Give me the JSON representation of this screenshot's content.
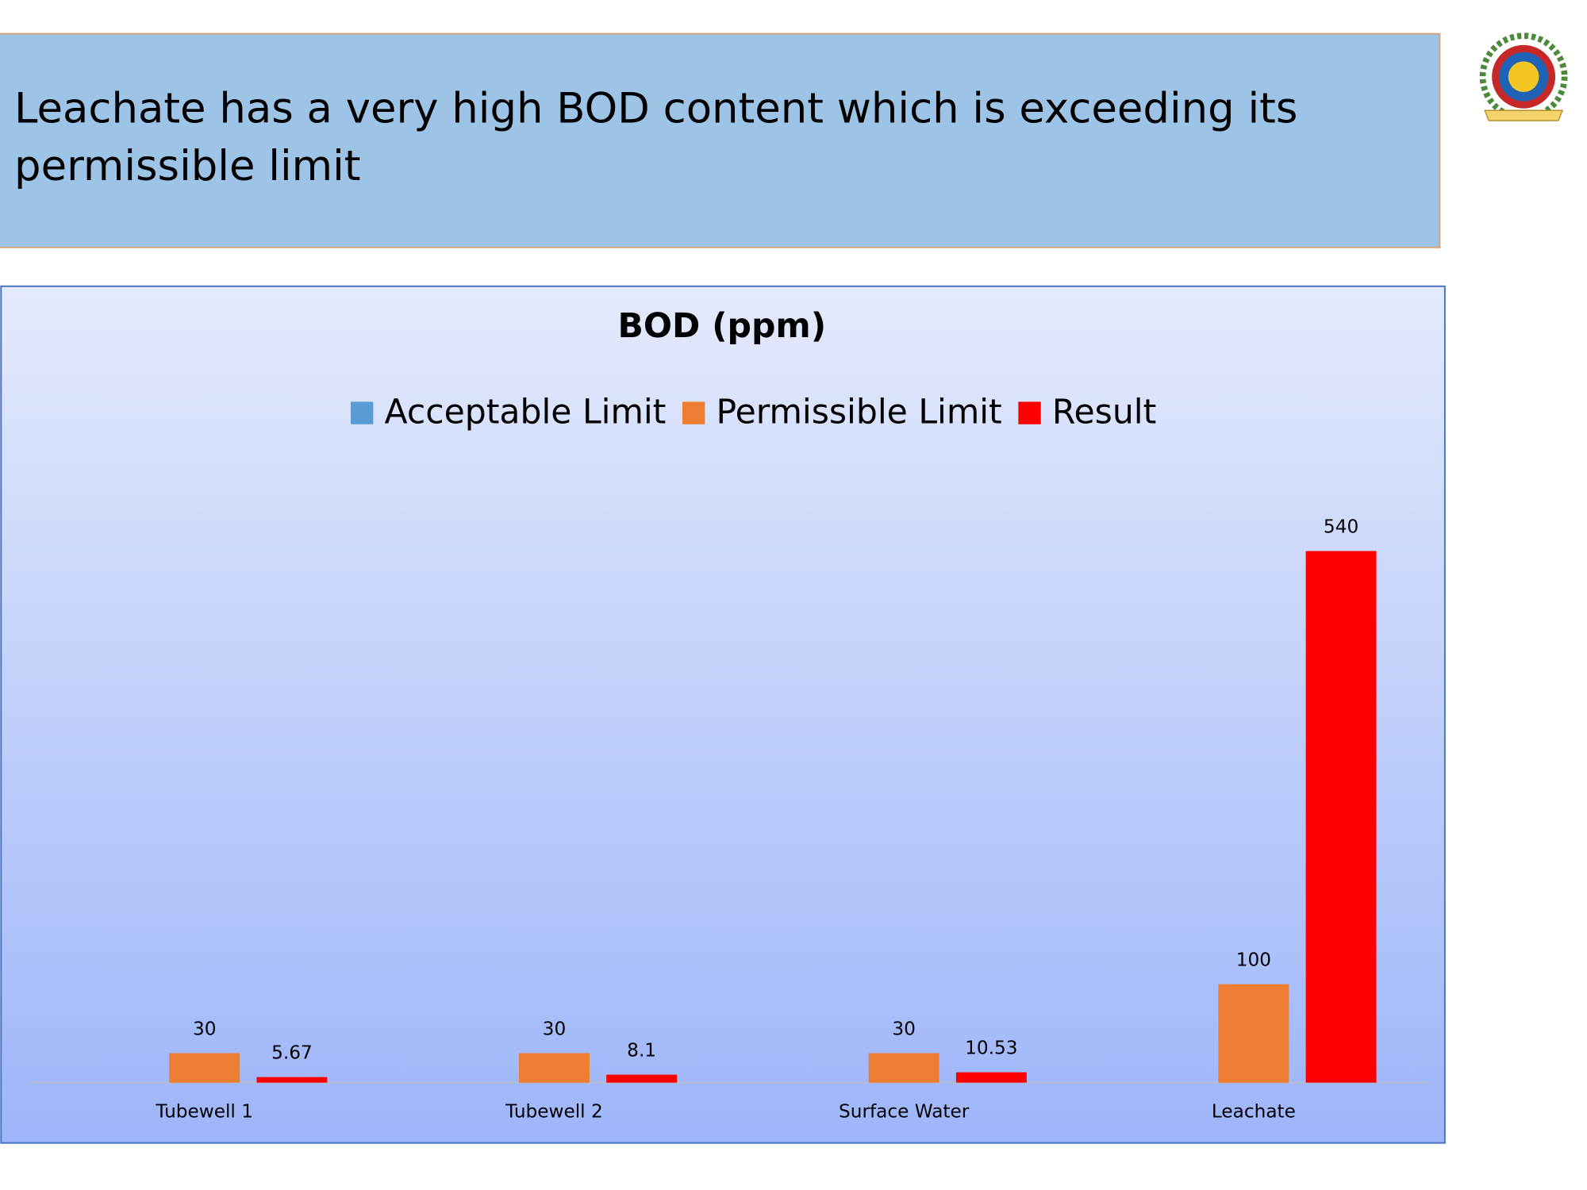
{
  "header": {
    "title": "Leachate has a very high BOD content which is exceeding its permissible limit"
  },
  "chart_data": {
    "type": "bar",
    "title": "BOD (ppm)",
    "categories": [
      "Tubewell 1",
      "Tubewell 2",
      "Surface Water",
      "Leachate"
    ],
    "series": [
      {
        "name": "Acceptable Limit",
        "color": "#5b9bd5",
        "values": [
          null,
          null,
          null,
          null
        ]
      },
      {
        "name": "Permissible Limit",
        "color": "#ed7d31",
        "values": [
          30,
          30,
          30,
          100
        ]
      },
      {
        "name": "Result",
        "color": "#ff0000",
        "values": [
          5.67,
          8.1,
          10.53,
          540
        ]
      }
    ],
    "legend": "top"
  }
}
